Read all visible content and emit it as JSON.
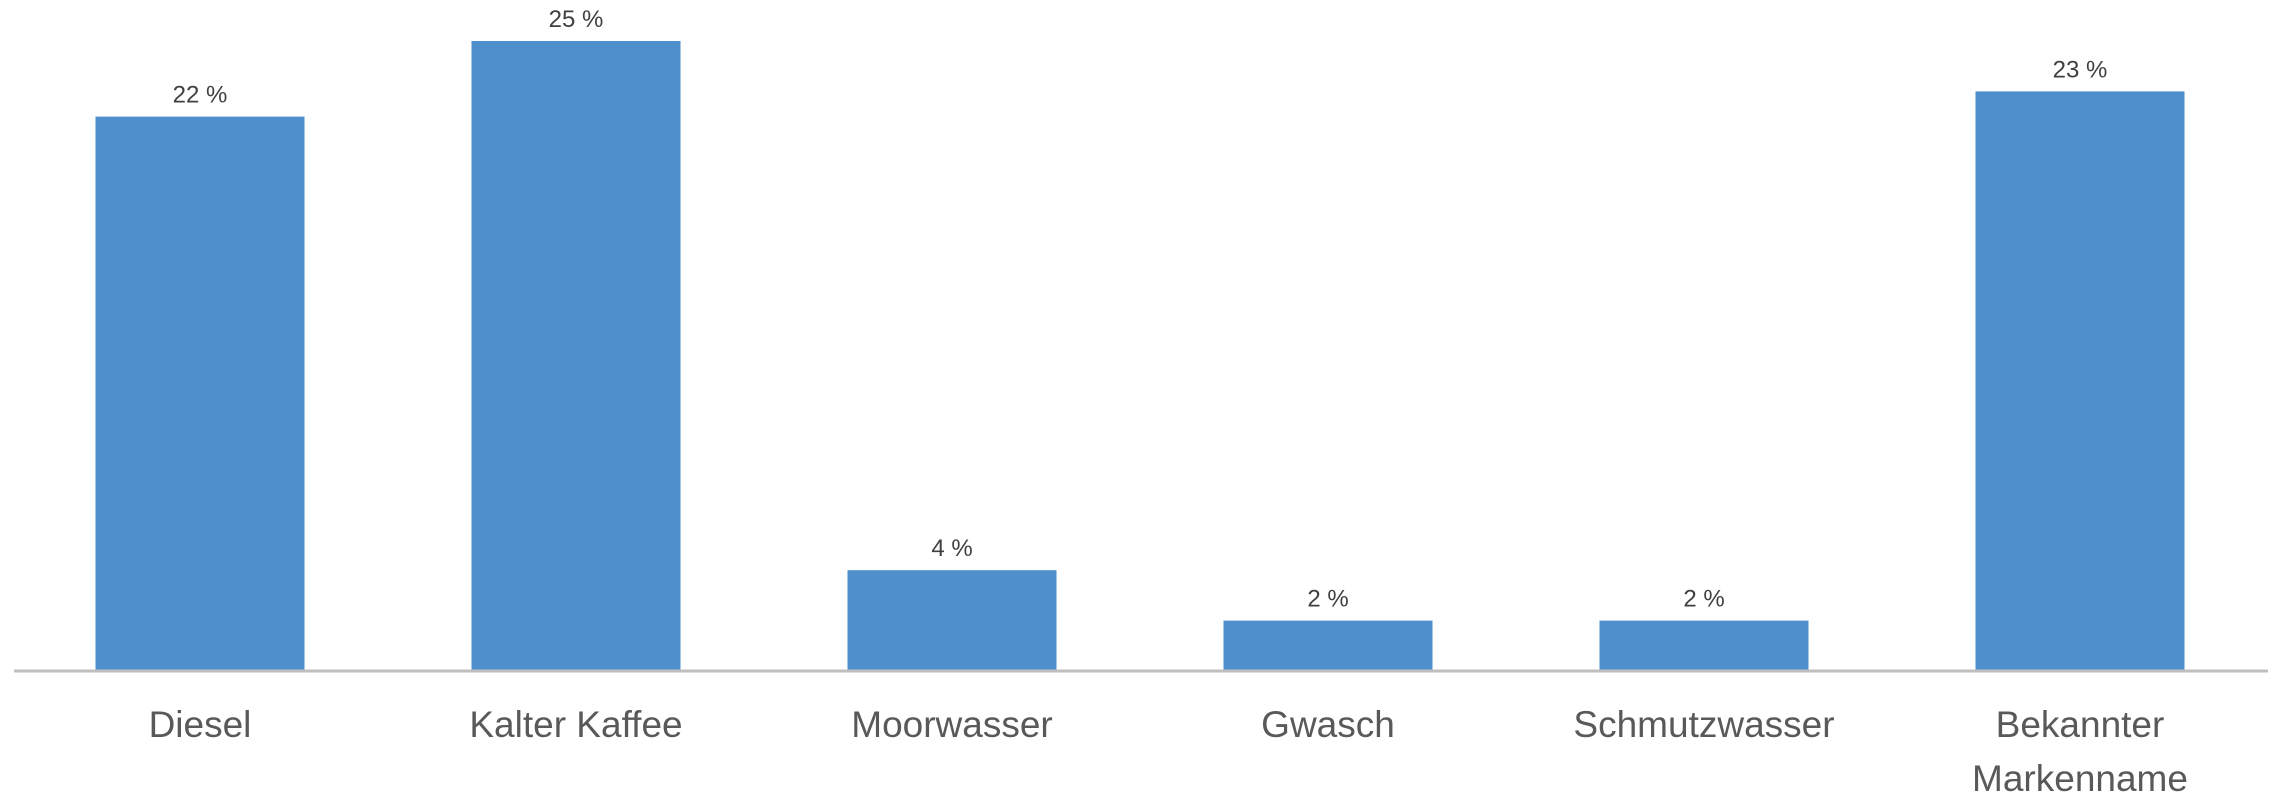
{
  "chart_data": {
    "type": "bar",
    "categories": [
      "Diesel",
      "Kalter Kaffee",
      "Moorwasser",
      "Gwasch",
      "Schmutzwasser",
      "Bekannter Markenname"
    ],
    "values": [
      22,
      25,
      4,
      2,
      2,
      23
    ],
    "value_labels": [
      "22 %",
      "25 %",
      "4 %",
      "2 %",
      "2 %",
      "23 %"
    ],
    "color": "#4e8fcc"
  }
}
